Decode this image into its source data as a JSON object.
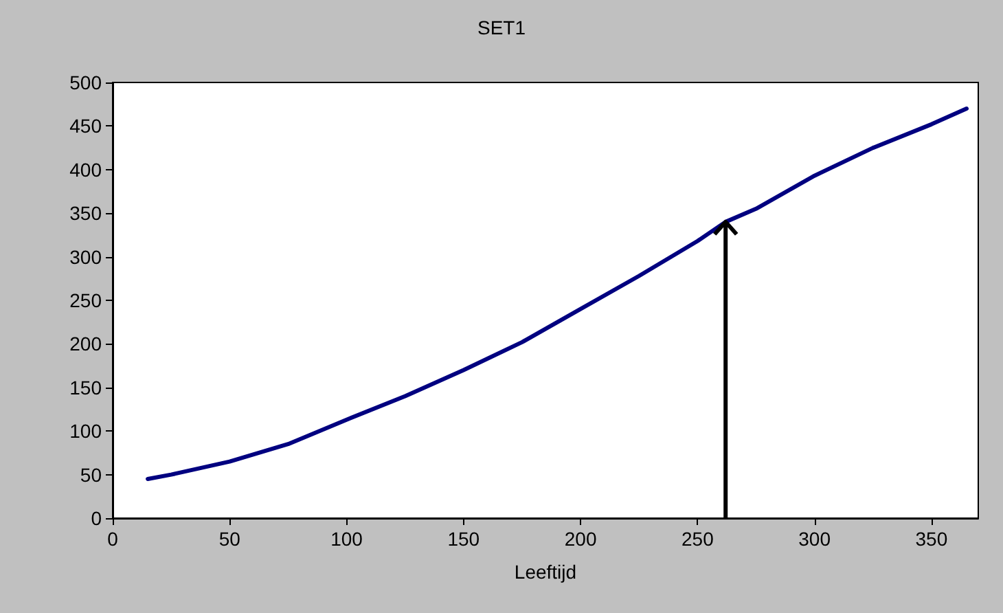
{
  "chart_data": {
    "type": "line",
    "title": "SET1",
    "xlabel": "Leeftijd",
    "series": [
      {
        "color": "#000080",
        "x": [
          15,
          25,
          50,
          75,
          100,
          125,
          150,
          175,
          200,
          225,
          250,
          262,
          275,
          300,
          325,
          350,
          365
        ],
        "values": [
          45,
          50,
          65,
          85,
          113,
          140,
          170,
          202,
          240,
          278,
          318,
          340,
          355,
          393,
          425,
          452,
          470
        ]
      }
    ],
    "xlim": [
      0,
      370
    ],
    "xticks": [
      0,
      50,
      100,
      150,
      200,
      250,
      300,
      350
    ],
    "ylim": [
      0,
      500
    ],
    "yticks": [
      0,
      50,
      100,
      150,
      200,
      250,
      300,
      350,
      400,
      450,
      500
    ],
    "grid": false,
    "marker": "none",
    "line_style": "solid",
    "ref_lines": [
      {
        "axis": "x",
        "value": 262,
        "color": "#000000"
      }
    ]
  }
}
